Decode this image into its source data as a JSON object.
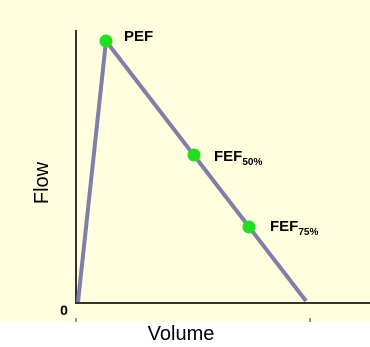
{
  "figure": {
    "background_color": "#FFFFE0",
    "curve_color": "#7F7FA8",
    "point_color": "#22DD22",
    "axis_color": "#333333",
    "x_label": "Volume",
    "y_label": "Flow",
    "origin_label": "0"
  },
  "points": [
    {
      "main": "PEF",
      "sub": ""
    },
    {
      "main": "FEF",
      "sub": "50%"
    },
    {
      "main": "FEF",
      "sub": "75%"
    }
  ]
}
